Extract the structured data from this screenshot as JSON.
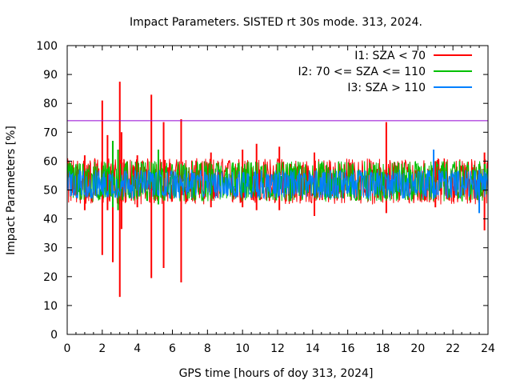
{
  "chart_data": {
    "type": "line",
    "title": "Impact Parameters. SISTED rt 30s mode. 313, 2024.",
    "xlabel": "GPS time [hours of doy 313, 2024]",
    "ylabel": "Impact Parameters [%]",
    "xlim": [
      0,
      24
    ],
    "ylim": [
      0,
      100
    ],
    "xticks": [
      0,
      2,
      4,
      6,
      8,
      10,
      12,
      14,
      16,
      18,
      20,
      22,
      24
    ],
    "yticks": [
      0,
      10,
      20,
      30,
      40,
      50,
      60,
      70,
      80,
      90,
      100
    ],
    "legend_position": "top-right",
    "threshold": {
      "value": 74,
      "color": "#9400d3"
    },
    "series": [
      {
        "name": "I1: SZA < 70",
        "color": "#ff0000",
        "baseline": 53,
        "typical_range": [
          45,
          61
        ],
        "spikes": [
          {
            "x": 1.0,
            "min": 43,
            "max": 62
          },
          {
            "x": 2.0,
            "min": 27.5,
            "max": 81
          },
          {
            "x": 2.3,
            "min": 43,
            "max": 69
          },
          {
            "x": 2.6,
            "min": 25,
            "max": 67
          },
          {
            "x": 3.0,
            "min": 13,
            "max": 87.5
          },
          {
            "x": 3.1,
            "min": 36.5,
            "max": 70
          },
          {
            "x": 4.0,
            "min": 44,
            "max": 62
          },
          {
            "x": 4.8,
            "min": 19.5,
            "max": 83
          },
          {
            "x": 5.5,
            "min": 23,
            "max": 73.5
          },
          {
            "x": 6.5,
            "min": 18,
            "max": 74.5
          },
          {
            "x": 8.2,
            "min": 44,
            "max": 63
          },
          {
            "x": 10.0,
            "min": 44,
            "max": 64
          },
          {
            "x": 10.8,
            "min": 43,
            "max": 66
          },
          {
            "x": 12.1,
            "min": 43,
            "max": 65
          },
          {
            "x": 14.1,
            "min": 41,
            "max": 63
          },
          {
            "x": 18.2,
            "min": 42,
            "max": 73.5
          },
          {
            "x": 21.0,
            "min": 44,
            "max": 60
          },
          {
            "x": 23.8,
            "min": 36,
            "max": 63
          }
        ]
      },
      {
        "name": "I2: 70 <= SZA <= 110",
        "color": "#00c000",
        "baseline": 53,
        "typical_range": [
          46,
          60
        ],
        "spikes": [
          {
            "x": 2.6,
            "min": 44,
            "max": 67
          },
          {
            "x": 2.9,
            "min": 43,
            "max": 64
          },
          {
            "x": 5.2,
            "min": 45,
            "max": 64
          }
        ]
      },
      {
        "name": "I3: SZA > 110",
        "color": "#0080ff",
        "baseline": 52,
        "typical_range": [
          47,
          57
        ],
        "spikes": [
          {
            "x": 20.9,
            "min": 47,
            "max": 64
          },
          {
            "x": 23.5,
            "min": 42,
            "max": 57
          }
        ]
      }
    ]
  }
}
